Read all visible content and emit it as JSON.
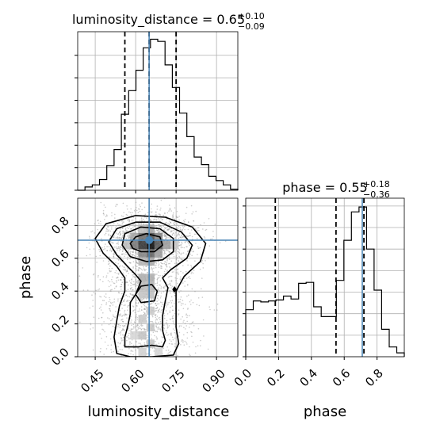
{
  "figure": {
    "title_ld": {
      "name": "luminosity_distance",
      "median": "0.65",
      "plus": "+0.10",
      "minus": "−0.09"
    },
    "title_ph": {
      "name": "phase",
      "median": "0.55",
      "plus": "+0.18",
      "minus": "−0.36"
    }
  },
  "chart_data": [
    {
      "type": "histogram",
      "parameter": "luminosity_distance",
      "bin_edges": [
        0.385,
        0.412,
        0.439,
        0.466,
        0.493,
        0.52,
        0.547,
        0.574,
        0.601,
        0.628,
        0.655,
        0.682,
        0.709,
        0.736,
        0.763,
        0.79,
        0.817,
        0.844,
        0.871,
        0.898,
        0.925,
        0.952,
        0.979
      ],
      "counts": [
        0,
        3,
        5,
        10,
        23,
        38,
        71,
        93,
        112,
        133,
        141,
        139,
        117,
        96,
        72,
        50,
        31,
        24,
        13,
        9,
        5,
        1
      ],
      "quantiles": [
        0.56,
        0.65,
        0.75
      ],
      "truth": 0.65,
      "xlim": [
        0.385,
        0.979
      ]
    },
    {
      "type": "histogram",
      "parameter": "phase",
      "bin_edges": [
        0.0,
        0.046,
        0.092,
        0.138,
        0.184,
        0.23,
        0.276,
        0.322,
        0.368,
        0.414,
        0.46,
        0.506,
        0.552,
        0.598,
        0.644,
        0.69,
        0.736,
        0.782,
        0.828,
        0.874,
        0.92,
        0.966
      ],
      "counts": [
        48,
        57,
        56,
        57,
        58,
        62,
        59,
        75,
        76,
        51,
        41,
        41,
        78,
        119,
        148,
        153,
        110,
        68,
        28,
        10,
        4
      ],
      "quantiles": [
        0.18,
        0.55,
        0.72
      ],
      "truth": 0.71,
      "xlim": [
        0.0,
        0.966
      ],
      "xticks": [
        "0.0",
        "0.2",
        "0.4",
        "0.6",
        "0.8"
      ]
    },
    {
      "type": "scatter",
      "x_parameter": "luminosity_distance",
      "y_parameter": "phase",
      "xlabel": "luminosity_distance",
      "ylabel": "phase",
      "xticks": [
        "0.45",
        "0.60",
        "0.75",
        "0.90"
      ],
      "yticks": [
        "0.0",
        "0.2",
        "0.4",
        "0.6",
        "0.8"
      ],
      "xlim": [
        0.385,
        0.979
      ],
      "ylim": [
        0.0,
        0.966
      ],
      "truth": [
        0.65,
        0.71
      ],
      "point_clusters": [
        {
          "x": 0.65,
          "y": 0.72,
          "sx": 0.09,
          "sy": 0.09,
          "n": 1400
        },
        {
          "x": 0.64,
          "y": 0.45,
          "sx": 0.09,
          "sy": 0.13,
          "n": 700
        },
        {
          "x": 0.63,
          "y": 0.15,
          "sx": 0.09,
          "sy": 0.11,
          "n": 600
        }
      ],
      "density_cells": [
        {
          "x": 0.655,
          "y": 0.68,
          "level": 1.0
        },
        {
          "x": 0.625,
          "y": 0.68,
          "level": 0.8
        },
        {
          "x": 0.685,
          "y": 0.68,
          "level": 0.65
        },
        {
          "x": 0.595,
          "y": 0.68,
          "level": 0.5
        },
        {
          "x": 0.715,
          "y": 0.68,
          "level": 0.35
        },
        {
          "x": 0.655,
          "y": 0.73,
          "level": 0.7
        },
        {
          "x": 0.625,
          "y": 0.73,
          "level": 0.55
        },
        {
          "x": 0.685,
          "y": 0.73,
          "level": 0.45
        },
        {
          "x": 0.655,
          "y": 0.63,
          "level": 0.6
        },
        {
          "x": 0.625,
          "y": 0.63,
          "level": 0.45
        },
        {
          "x": 0.685,
          "y": 0.63,
          "level": 0.35
        },
        {
          "x": 0.655,
          "y": 0.58,
          "level": 0.3
        },
        {
          "x": 0.625,
          "y": 0.58,
          "level": 0.25
        },
        {
          "x": 0.655,
          "y": 0.78,
          "level": 0.3
        },
        {
          "x": 0.625,
          "y": 0.78,
          "level": 0.2
        },
        {
          "x": 0.595,
          "y": 0.73,
          "level": 0.3
        },
        {
          "x": 0.565,
          "y": 0.68,
          "level": 0.2
        },
        {
          "x": 0.745,
          "y": 0.68,
          "level": 0.15
        },
        {
          "x": 0.655,
          "y": 0.48,
          "level": 0.28
        },
        {
          "x": 0.625,
          "y": 0.48,
          "level": 0.28
        },
        {
          "x": 0.655,
          "y": 0.43,
          "level": 0.25
        },
        {
          "x": 0.625,
          "y": 0.43,
          "level": 0.22
        },
        {
          "x": 0.655,
          "y": 0.38,
          "level": 0.2
        },
        {
          "x": 0.625,
          "y": 0.38,
          "level": 0.18
        },
        {
          "x": 0.655,
          "y": 0.28,
          "level": 0.15
        },
        {
          "x": 0.625,
          "y": 0.23,
          "level": 0.15
        },
        {
          "x": 0.655,
          "y": 0.18,
          "level": 0.17
        },
        {
          "x": 0.625,
          "y": 0.13,
          "level": 0.18
        },
        {
          "x": 0.655,
          "y": 0.08,
          "level": 0.17
        },
        {
          "x": 0.625,
          "y": 0.03,
          "level": 0.12
        },
        {
          "x": 0.685,
          "y": 0.03,
          "level": 0.1
        },
        {
          "x": 0.595,
          "y": 0.13,
          "level": 0.1
        }
      ],
      "contours": [
        [
          [
            0.59,
            0.66
          ],
          [
            0.62,
            0.64
          ],
          [
            0.67,
            0.64
          ],
          [
            0.7,
            0.68
          ],
          [
            0.69,
            0.73
          ],
          [
            0.64,
            0.75
          ],
          [
            0.6,
            0.73
          ],
          [
            0.58,
            0.69
          ]
        ],
        [
          [
            0.55,
            0.68
          ],
          [
            0.58,
            0.61
          ],
          [
            0.64,
            0.58
          ],
          [
            0.7,
            0.59
          ],
          [
            0.74,
            0.64
          ],
          [
            0.74,
            0.72
          ],
          [
            0.69,
            0.78
          ],
          [
            0.62,
            0.79
          ],
          [
            0.56,
            0.75
          ]
        ],
        [
          [
            0.62,
            0.33
          ],
          [
            0.67,
            0.34
          ],
          [
            0.68,
            0.4
          ],
          [
            0.66,
            0.44
          ],
          [
            0.62,
            0.43
          ],
          [
            0.6,
            0.38
          ]
        ],
        [
          [
            0.5,
            0.7
          ],
          [
            0.53,
            0.62
          ],
          [
            0.57,
            0.55
          ],
          [
            0.6,
            0.5
          ],
          [
            0.62,
            0.46
          ],
          [
            0.6,
            0.38
          ],
          [
            0.58,
            0.33
          ],
          [
            0.58,
            0.26
          ],
          [
            0.57,
            0.18
          ],
          [
            0.56,
            0.12
          ],
          [
            0.56,
            0.06
          ],
          [
            0.61,
            0.06
          ],
          [
            0.66,
            0.07
          ],
          [
            0.7,
            0.06
          ],
          [
            0.71,
            0.1
          ],
          [
            0.7,
            0.16
          ],
          [
            0.7,
            0.25
          ],
          [
            0.71,
            0.34
          ],
          [
            0.72,
            0.42
          ],
          [
            0.7,
            0.48
          ],
          [
            0.73,
            0.53
          ],
          [
            0.79,
            0.6
          ],
          [
            0.81,
            0.68
          ],
          [
            0.77,
            0.76
          ],
          [
            0.69,
            0.82
          ],
          [
            0.6,
            0.82
          ],
          [
            0.53,
            0.78
          ]
        ],
        [
          [
            0.45,
            0.72
          ],
          [
            0.48,
            0.63
          ],
          [
            0.53,
            0.55
          ],
          [
            0.56,
            0.48
          ],
          [
            0.56,
            0.4
          ],
          [
            0.54,
            0.31
          ],
          [
            0.53,
            0.22
          ],
          [
            0.52,
            0.12
          ],
          [
            0.53,
            0.02
          ],
          [
            0.58,
            0.0
          ],
          [
            0.66,
            0.0
          ],
          [
            0.74,
            0.01
          ],
          [
            0.76,
            0.08
          ],
          [
            0.75,
            0.18
          ],
          [
            0.75,
            0.3
          ],
          [
            0.75,
            0.4
          ],
          [
            0.78,
            0.49
          ],
          [
            0.84,
            0.58
          ],
          [
            0.86,
            0.69
          ],
          [
            0.81,
            0.79
          ],
          [
            0.71,
            0.85
          ],
          [
            0.6,
            0.86
          ],
          [
            0.49,
            0.81
          ]
        ]
      ],
      "small_contours": [
        [
          [
            0.743,
            0.395
          ],
          [
            0.751,
            0.41
          ],
          [
            0.744,
            0.425
          ],
          [
            0.738,
            0.41
          ]
        ]
      ]
    }
  ]
}
